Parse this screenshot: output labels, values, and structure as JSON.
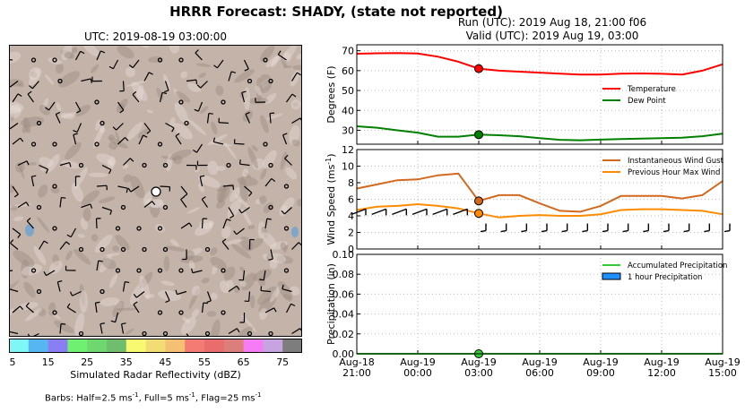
{
  "title": "HRRR Forecast: SHADY, (state not reported)",
  "run_line1": "Run (UTC): 2019 Aug 18, 21:00 f06",
  "run_line2": "Valid (UTC): 2019 Aug 19, 03:00",
  "map": {
    "title": "UTC: 2019-08-19 03:00:00",
    "colorbar_label": "Simulated Radar Reflectivity (dBZ)",
    "colorbar_ticks": [
      "5",
      "15",
      "25",
      "35",
      "45",
      "55",
      "65",
      "75"
    ],
    "colorbar_colors": [
      "#7ff7f7",
      "#55b6f0",
      "#8a7ef5",
      "#70f070",
      "#6ed86e",
      "#6fbe6f",
      "#f8f871",
      "#f2dd75",
      "#f5c074",
      "#f47b74",
      "#e96d6d",
      "#dc7f7a",
      "#f57cf5",
      "#c7a4e0",
      "#7d7d7d"
    ],
    "barb_note_prefix": "Barbs: Half=2.5 ms",
    "barb_note_mid1": ", Full=5 ms",
    "barb_note_mid2": ", Flag=25 ms",
    "barb_exp": "-1"
  },
  "colors": {
    "temperature": "#ff0000",
    "dew_point": "#008000",
    "gust": "#d2691e",
    "max_wind": "#ff8c00",
    "accum_precip": "#32cd32",
    "hour_precip": "#1e90ff",
    "terrain": "#c4b3a8"
  },
  "x_tick_labels": [
    [
      "Aug-18",
      "21:00"
    ],
    [
      "Aug-19",
      "00:00"
    ],
    [
      "Aug-19",
      "03:00"
    ],
    [
      "Aug-19",
      "06:00"
    ],
    [
      "Aug-19",
      "09:00"
    ],
    [
      "Aug-19",
      "12:00"
    ],
    [
      "Aug-19",
      "15:00"
    ]
  ],
  "chart_data": [
    {
      "type": "line",
      "ylabel": "Degrees (F)",
      "ylim": [
        23,
        73
      ],
      "yticks": [
        30,
        40,
        50,
        60,
        70
      ],
      "x_hours": [
        0,
        1,
        2,
        3,
        4,
        5,
        6,
        7,
        8,
        9,
        10,
        11,
        12,
        13,
        14,
        15,
        16,
        17,
        18
      ],
      "highlight_hour": 6,
      "legend_placement": "right",
      "series": [
        {
          "name": "Temperature",
          "values": [
            68.5,
            68.7,
            68.8,
            68.6,
            67.0,
            64.5,
            61.0,
            60.0,
            59.5,
            59.0,
            58.5,
            58.0,
            58.0,
            58.5,
            58.6,
            58.4,
            58.0,
            60.0,
            63.2
          ]
        },
        {
          "name": "Dew Point",
          "values": [
            32.0,
            31.3,
            30.0,
            28.8,
            26.8,
            26.8,
            27.8,
            27.5,
            27.0,
            26.0,
            25.2,
            25.0,
            25.3,
            25.6,
            25.8,
            26.0,
            26.3,
            27.0,
            28.3
          ]
        }
      ]
    },
    {
      "type": "line",
      "ylabel": "Wind Speed (ms",
      "ylabel_exp": "-1",
      "ylabel_close": ")",
      "ylim": [
        0,
        12
      ],
      "yticks": [
        0,
        2,
        4,
        6,
        8,
        10,
        12
      ],
      "x_hours": [
        0,
        1,
        2,
        3,
        4,
        5,
        6,
        7,
        8,
        9,
        10,
        11,
        12,
        13,
        14,
        15,
        16,
        17,
        18
      ],
      "highlight_hour": 6,
      "legend_placement": "top-right",
      "series": [
        {
          "name": "Instantaneous Wind Gust",
          "values": [
            7.3,
            7.8,
            8.3,
            8.4,
            8.9,
            9.1,
            5.8,
            6.5,
            6.5,
            5.5,
            4.6,
            4.5,
            5.2,
            6.4,
            6.4,
            6.4,
            6.1,
            6.5,
            8.2
          ]
        },
        {
          "name": "Previous Hour Max Wind",
          "values": [
            4.7,
            5.1,
            5.2,
            5.4,
            5.2,
            4.9,
            4.3,
            3.8,
            4.0,
            4.1,
            4.0,
            4.0,
            4.2,
            4.7,
            4.8,
            4.8,
            4.7,
            4.6,
            4.2
          ]
        }
      ]
    },
    {
      "type": "bar",
      "ylabel": "Precipitation (in)",
      "ylim": [
        0,
        0.1
      ],
      "yticks": [
        "0.00",
        "0.02",
        "0.04",
        "0.06",
        "0.08",
        "0.10"
      ],
      "x_hours": [
        0,
        1,
        2,
        3,
        4,
        5,
        6,
        7,
        8,
        9,
        10,
        11,
        12,
        13,
        14,
        15,
        16,
        17,
        18
      ],
      "highlight_hour": 6,
      "legend_placement": "top-right",
      "series": [
        {
          "name": "Accumulated Precipitation",
          "values": [
            0,
            0,
            0,
            0,
            0,
            0,
            0,
            0,
            0,
            0,
            0,
            0,
            0,
            0,
            0,
            0,
            0,
            0,
            0
          ]
        },
        {
          "name": "1 hour Precipitation",
          "values": [
            0,
            0,
            0,
            0,
            0,
            0,
            0,
            0,
            0,
            0,
            0,
            0,
            0,
            0,
            0,
            0,
            0,
            0,
            0
          ]
        }
      ]
    }
  ]
}
